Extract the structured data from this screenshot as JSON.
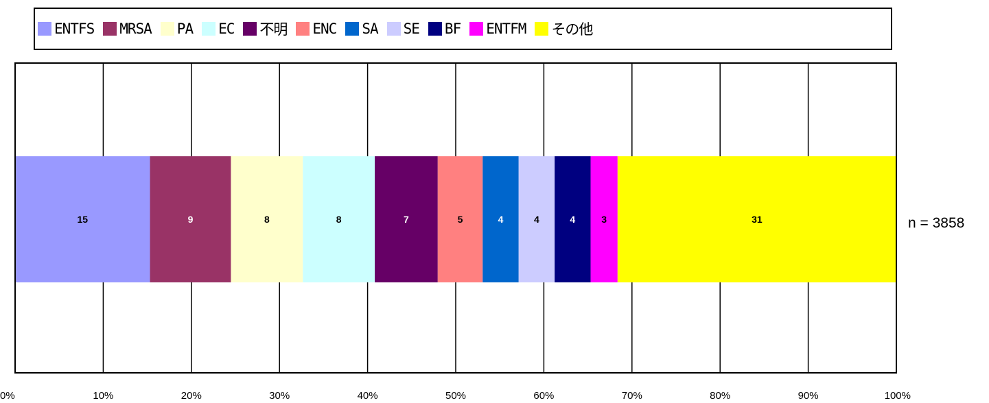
{
  "chart_data": {
    "type": "bar",
    "orientation": "horizontal-stacked-100",
    "series": [
      {
        "name": "ENTFS",
        "value": 15,
        "color": "#9999FF"
      },
      {
        "name": "MRSA",
        "value": 9,
        "color": "#993366"
      },
      {
        "name": "PA",
        "value": 8,
        "color": "#FFFFCC"
      },
      {
        "name": "EC",
        "value": 8,
        "color": "#CCFFFF"
      },
      {
        "name": "不明",
        "value": 7,
        "color": "#660066"
      },
      {
        "name": "ENC",
        "value": 5,
        "color": "#FF8080"
      },
      {
        "name": "SA",
        "value": 4,
        "color": "#0066CC"
      },
      {
        "name": "SE",
        "value": 4,
        "color": "#CCCCFF"
      },
      {
        "name": "BF",
        "value": 4,
        "color": "#000080"
      },
      {
        "name": "ENTFM",
        "value": 3,
        "color": "#FF00FF"
      },
      {
        "name": "その他",
        "value": 31,
        "color": "#FFFF00"
      }
    ],
    "label_colors": {
      "ENTFS": "#000000",
      "MRSA": "#FFFFFF",
      "PA": "#000000",
      "EC": "#000000",
      "不明": "#FFFFFF",
      "ENC": "#000000",
      "SA": "#FFFFFF",
      "SE": "#000000",
      "BF": "#FFFFFF",
      "ENTFM": "#000000",
      "その他": "#000000"
    },
    "xlim": [
      0,
      100
    ],
    "x_ticks": [
      "0%",
      "10%",
      "20%",
      "30%",
      "40%",
      "50%",
      "60%",
      "70%",
      "80%",
      "90%",
      "100%"
    ],
    "annotation": "n = 3858",
    "grid": true,
    "legend_position": "top"
  }
}
